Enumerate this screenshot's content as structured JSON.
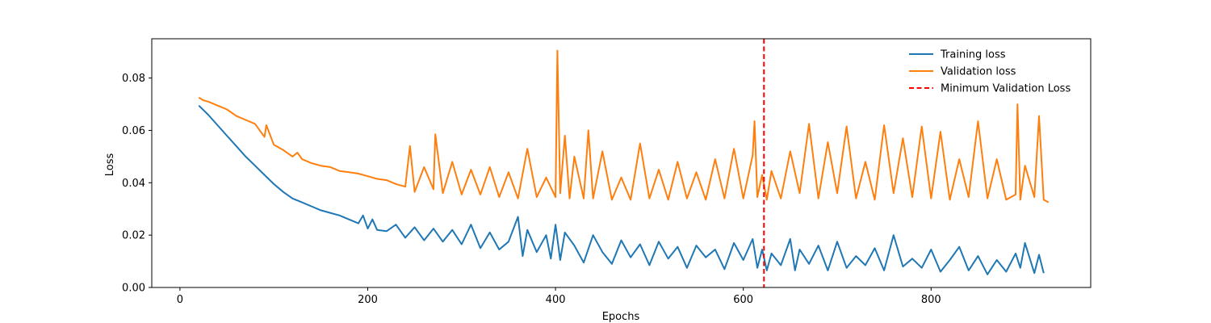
{
  "chart_data": {
    "type": "line",
    "title": "",
    "xlabel": "Epochs",
    "ylabel": "Loss",
    "xlim": [
      -30,
      970
    ],
    "ylim": [
      0.0,
      0.095
    ],
    "xticks": [
      0,
      200,
      400,
      600,
      800
    ],
    "xtick_labels": [
      "0",
      "200",
      "400",
      "600",
      "800"
    ],
    "yticks": [
      0.0,
      0.02,
      0.04,
      0.06,
      0.08
    ],
    "ytick_labels": [
      "0.00",
      "0.02",
      "0.04",
      "0.06",
      "0.08"
    ],
    "grid": false,
    "legend_position": "top-right",
    "series": [
      {
        "name": "Training loss",
        "color": "#1f77b4",
        "style": "solid",
        "x": [
          20,
          30,
          40,
          50,
          60,
          70,
          80,
          90,
          100,
          110,
          120,
          130,
          140,
          150,
          160,
          170,
          180,
          190,
          195,
          200,
          205,
          210,
          220,
          230,
          240,
          250,
          260,
          270,
          280,
          290,
          300,
          310,
          320,
          330,
          340,
          350,
          360,
          365,
          370,
          380,
          390,
          395,
          400,
          405,
          410,
          420,
          430,
          440,
          450,
          460,
          470,
          480,
          490,
          500,
          510,
          520,
          530,
          540,
          550,
          560,
          570,
          580,
          590,
          600,
          610,
          615,
          620,
          625,
          630,
          640,
          650,
          655,
          660,
          670,
          680,
          690,
          700,
          710,
          720,
          730,
          740,
          750,
          760,
          770,
          780,
          790,
          800,
          810,
          820,
          830,
          840,
          850,
          860,
          870,
          880,
          890,
          895,
          900,
          910,
          915,
          920
        ],
        "values": [
          0.0695,
          0.066,
          0.062,
          0.058,
          0.054,
          0.05,
          0.0465,
          0.043,
          0.0395,
          0.0365,
          0.034,
          0.0325,
          0.031,
          0.0295,
          0.0285,
          0.0275,
          0.026,
          0.0245,
          0.0275,
          0.0225,
          0.026,
          0.022,
          0.0215,
          0.024,
          0.019,
          0.023,
          0.018,
          0.0225,
          0.0175,
          0.022,
          0.0165,
          0.024,
          0.015,
          0.021,
          0.0145,
          0.0175,
          0.027,
          0.012,
          0.022,
          0.0135,
          0.02,
          0.011,
          0.024,
          0.0105,
          0.021,
          0.016,
          0.0095,
          0.02,
          0.0135,
          0.009,
          0.018,
          0.0115,
          0.0165,
          0.0085,
          0.0175,
          0.011,
          0.0155,
          0.0075,
          0.016,
          0.0115,
          0.0145,
          0.007,
          0.017,
          0.0105,
          0.0185,
          0.0075,
          0.0145,
          0.0065,
          0.013,
          0.0085,
          0.0185,
          0.0065,
          0.0145,
          0.009,
          0.016,
          0.0065,
          0.0175,
          0.0075,
          0.012,
          0.0085,
          0.015,
          0.0065,
          0.02,
          0.008,
          0.011,
          0.0075,
          0.0145,
          0.006,
          0.0105,
          0.0155,
          0.0065,
          0.012,
          0.005,
          0.0105,
          0.006,
          0.013,
          0.0075,
          0.017,
          0.0055,
          0.0125,
          0.0055
        ]
      },
      {
        "name": "Validation loss",
        "color": "#ff7f0e",
        "style": "solid",
        "x": [
          20,
          25,
          30,
          40,
          50,
          60,
          70,
          80,
          90,
          92,
          100,
          110,
          120,
          125,
          130,
          140,
          150,
          160,
          170,
          180,
          190,
          200,
          210,
          220,
          230,
          240,
          245,
          250,
          260,
          270,
          272,
          280,
          290,
          300,
          310,
          320,
          330,
          340,
          350,
          360,
          370,
          380,
          390,
          400,
          402,
          405,
          410,
          415,
          420,
          430,
          435,
          440,
          450,
          460,
          470,
          480,
          490,
          500,
          510,
          520,
          530,
          540,
          550,
          560,
          570,
          580,
          590,
          600,
          610,
          612,
          615,
          620,
          625,
          630,
          640,
          650,
          660,
          670,
          680,
          690,
          700,
          710,
          720,
          730,
          740,
          750,
          760,
          770,
          780,
          790,
          800,
          810,
          820,
          830,
          840,
          850,
          860,
          870,
          880,
          890,
          892,
          895,
          900,
          910,
          915,
          920,
          925
        ],
        "values": [
          0.0725,
          0.0715,
          0.071,
          0.0695,
          0.068,
          0.0655,
          0.064,
          0.0625,
          0.0575,
          0.062,
          0.0545,
          0.0525,
          0.05,
          0.0515,
          0.049,
          0.0475,
          0.0465,
          0.046,
          0.0445,
          0.044,
          0.0435,
          0.0425,
          0.0415,
          0.041,
          0.0395,
          0.0385,
          0.054,
          0.0365,
          0.046,
          0.0375,
          0.0585,
          0.036,
          0.048,
          0.0355,
          0.045,
          0.0355,
          0.046,
          0.0345,
          0.044,
          0.034,
          0.053,
          0.0345,
          0.042,
          0.0345,
          0.0905,
          0.036,
          0.058,
          0.034,
          0.05,
          0.034,
          0.06,
          0.034,
          0.052,
          0.0335,
          0.042,
          0.0335,
          0.055,
          0.034,
          0.045,
          0.0335,
          0.048,
          0.034,
          0.044,
          0.0335,
          0.049,
          0.034,
          0.053,
          0.034,
          0.0505,
          0.0635,
          0.0345,
          0.043,
          0.0335,
          0.0445,
          0.034,
          0.052,
          0.036,
          0.0625,
          0.034,
          0.0555,
          0.036,
          0.0615,
          0.034,
          0.048,
          0.0335,
          0.062,
          0.036,
          0.057,
          0.0345,
          0.0615,
          0.034,
          0.0595,
          0.0335,
          0.049,
          0.0345,
          0.0635,
          0.034,
          0.049,
          0.0335,
          0.0355,
          0.07,
          0.0335,
          0.0465,
          0.0345,
          0.0655,
          0.0335,
          0.0325
        ]
      },
      {
        "name": "Minimum Validation Loss",
        "color": "#ff0000",
        "style": "dashed",
        "x_vline": 622
      }
    ]
  }
}
